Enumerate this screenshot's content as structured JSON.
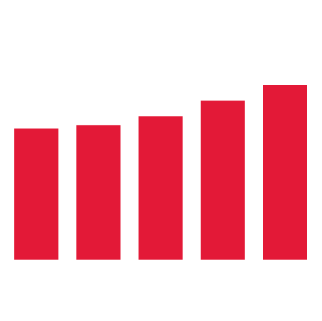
{
  "chart_data": {
    "type": "bar",
    "categories": [
      null,
      null,
      null,
      null,
      null
    ],
    "values": [
      75,
      77,
      82,
      91,
      100
    ],
    "color": "#e31937",
    "ylim": [
      0,
      100
    ]
  }
}
